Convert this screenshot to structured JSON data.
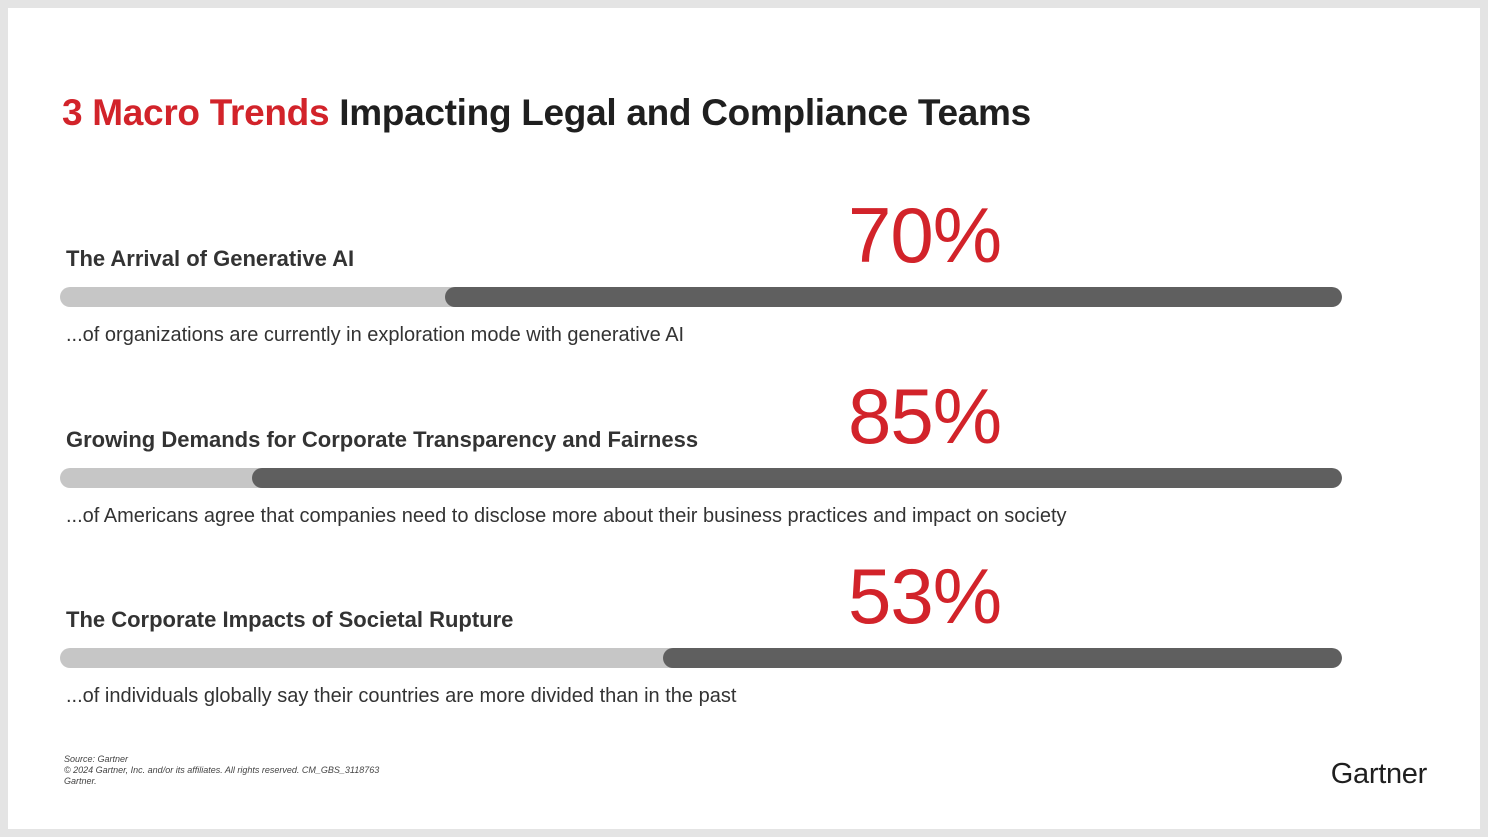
{
  "title": {
    "highlight": "3 Macro Trends",
    "rest": " Impacting Legal and Compliance Teams"
  },
  "chart_data": {
    "type": "bar",
    "categories": [
      "The Arrival of Generative AI",
      "Growing Demands for Corporate Transparency and Fairness",
      "The Corporate Impacts of Societal Rupture"
    ],
    "values": [
      70,
      85,
      53
    ],
    "value_labels": [
      "70%",
      "85%",
      "53%"
    ],
    "descriptions": [
      "...of organizations are currently in exploration mode with generative AI",
      "...of Americans agree that companies need to disclose more about their business practices and impact on society",
      "...of individuals globally say their countries are more divided than in the past"
    ],
    "ylim": [
      0,
      100
    ]
  },
  "colors": {
    "accent": "#d2232a",
    "bar_fill": "#5f5f5f",
    "bar_track": "#c6c6c6"
  },
  "footer": {
    "source": "Source: Gartner",
    "copyright": "© 2024 Gartner, Inc. and/or its affiliates. All rights reserved. CM_GBS_3118763",
    "company": "Gartner."
  },
  "logo": "Gartner"
}
